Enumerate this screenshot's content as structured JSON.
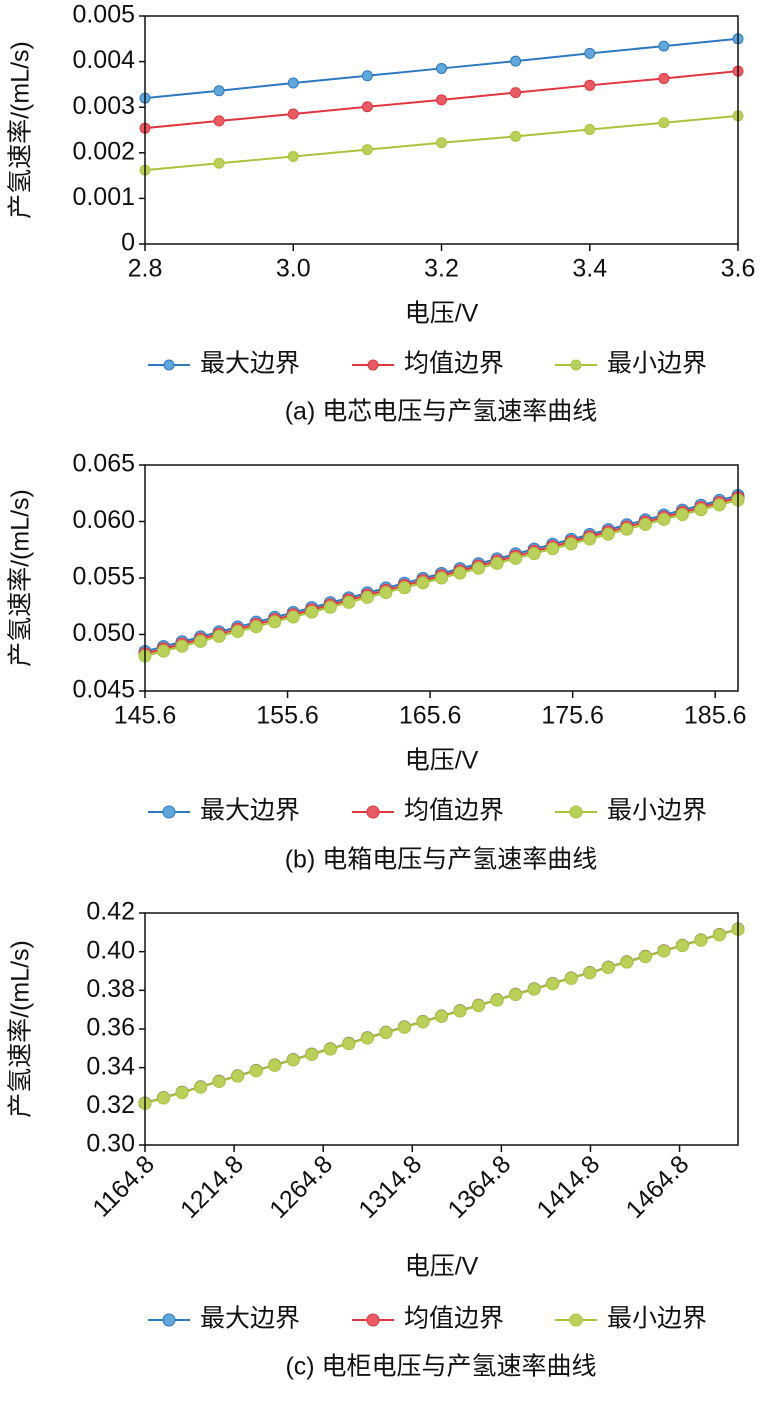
{
  "chart_data": [
    {
      "type": "line",
      "caption": "(a) 电芯电压与产氢速率曲线",
      "xlabel": "电压/V",
      "ylabel": "产氢速率/(mL/s)",
      "x": [
        2.8,
        2.9,
        3.0,
        3.1,
        3.2,
        3.3,
        3.4,
        3.5,
        3.6
      ],
      "series": [
        {
          "name": "最大边界",
          "color": "#2e78c0",
          "marker_color": "#5fa7dc",
          "values": [
            0.0032,
            0.00336,
            0.00353,
            0.00369,
            0.00385,
            0.00401,
            0.00418,
            0.00434,
            0.0045
          ]
        },
        {
          "name": "均值边界",
          "color": "#e0363f",
          "marker_color": "#ea5a62",
          "values": [
            0.00254,
            0.0027,
            0.00285,
            0.00301,
            0.00316,
            0.00332,
            0.00348,
            0.00363,
            0.00379
          ]
        },
        {
          "name": "最小边界",
          "color": "#a8c43c",
          "marker_color": "#b9d158",
          "values": [
            0.00162,
            0.00177,
            0.00192,
            0.00207,
            0.00222,
            0.00236,
            0.00251,
            0.00266,
            0.00281
          ]
        }
      ],
      "xlim": [
        2.8,
        3.6
      ],
      "xticks": [
        2.8,
        {
          "value": 3,
          "label": "3.0"
        },
        3.2,
        3.4,
        3.6
      ],
      "ylim": [
        0,
        0.005
      ],
      "yticks": [
        0,
        0.001,
        0.002,
        0.003,
        0.004,
        0.005
      ]
    },
    {
      "type": "line",
      "caption": "(b) 电箱电压与产氢速率曲线",
      "xlabel": "电压/V",
      "ylabel": "产氢速率/(mL/s)",
      "x": [
        145.6,
        146.9,
        148.2,
        149.5,
        150.8,
        152.1,
        153.4,
        154.7,
        156.0,
        157.3,
        158.6,
        159.9,
        161.2,
        162.5,
        163.8,
        165.1,
        166.4,
        167.7,
        169.0,
        170.3,
        171.6,
        172.9,
        174.2,
        175.5,
        176.8,
        178.1,
        179.4,
        180.7,
        182.0,
        183.3,
        184.6,
        185.9,
        187.2
      ],
      "series": [
        {
          "name": "最大边界",
          "color": "#2e78c0",
          "marker_color": "#5fa7dc",
          "values": [
            0.0485,
            0.04893,
            0.04936,
            0.04979,
            0.05023,
            0.05066,
            0.05109,
            0.05152,
            0.05195,
            0.05238,
            0.05281,
            0.05324,
            0.05368,
            0.05411,
            0.05454,
            0.05497,
            0.0554,
            0.05583,
            0.05626,
            0.05669,
            0.05713,
            0.05756,
            0.05799,
            0.05842,
            0.05885,
            0.05928,
            0.05971,
            0.06014,
            0.06058,
            0.06101,
            0.06144,
            0.06187,
            0.0623
          ]
        },
        {
          "name": "均值边界",
          "color": "#e0363f",
          "marker_color": "#ea5a62",
          "values": [
            0.0483,
            0.04873,
            0.04916,
            0.04959,
            0.05003,
            0.05046,
            0.05089,
            0.05132,
            0.05175,
            0.05218,
            0.05261,
            0.05304,
            0.05348,
            0.05391,
            0.05434,
            0.05477,
            0.0552,
            0.05563,
            0.05606,
            0.05649,
            0.05693,
            0.05736,
            0.05779,
            0.05822,
            0.05865,
            0.05908,
            0.05951,
            0.05994,
            0.06038,
            0.06081,
            0.06124,
            0.06167,
            0.0621
          ]
        },
        {
          "name": "最小边界",
          "color": "#a8c43c",
          "marker_color": "#b9d158",
          "values": [
            0.0481,
            0.04853,
            0.04896,
            0.04939,
            0.04983,
            0.05026,
            0.05069,
            0.05112,
            0.05155,
            0.05198,
            0.05241,
            0.05284,
            0.05328,
            0.05371,
            0.05414,
            0.05457,
            0.055,
            0.05543,
            0.05586,
            0.05629,
            0.05673,
            0.05716,
            0.05759,
            0.05802,
            0.05845,
            0.05888,
            0.05931,
            0.05974,
            0.06018,
            0.06061,
            0.06104,
            0.06147,
            0.0619
          ]
        }
      ],
      "xlim": [
        145.6,
        187.2
      ],
      "xticks": [
        145.6,
        155.6,
        165.6,
        175.6,
        185.6
      ],
      "ylim": [
        0.045,
        0.065
      ],
      "yticks": [
        0.045,
        {
          "value": 0.05,
          "label": "0.050"
        },
        0.055,
        {
          "value": 0.06,
          "label": "0.060"
        },
        0.065
      ]
    },
    {
      "type": "line",
      "caption": "(c) 电柜电压与产氢速率曲线",
      "xlabel": "电压/V",
      "ylabel": "产氢速率/(mL/s)",
      "x": [
        1164.8,
        1175.2,
        1185.6,
        1196.0,
        1206.4,
        1216.8,
        1227.2,
        1237.6,
        1248.0,
        1258.4,
        1268.8,
        1279.2,
        1289.6,
        1300.0,
        1310.4,
        1320.8,
        1331.2,
        1341.6,
        1352.0,
        1362.4,
        1372.8,
        1383.2,
        1393.6,
        1404.0,
        1414.4,
        1424.8,
        1435.2,
        1445.6,
        1456.0,
        1466.4,
        1476.8,
        1487.2,
        1497.6
      ],
      "series": [
        {
          "name": "最大边界",
          "color": "#2e78c0",
          "marker_color": "#5fa7dc",
          "values": [
            0.3217,
            0.3245,
            0.3273,
            0.3301,
            0.333,
            0.3358,
            0.3386,
            0.3414,
            0.3442,
            0.347,
            0.3498,
            0.3526,
            0.3555,
            0.3583,
            0.3611,
            0.3639,
            0.3667,
            0.3695,
            0.3723,
            0.3751,
            0.378,
            0.3808,
            0.3836,
            0.3864,
            0.3892,
            0.392,
            0.3948,
            0.3976,
            0.4005,
            0.4033,
            0.4061,
            0.4089,
            0.4117
          ]
        },
        {
          "name": "均值边界",
          "color": "#e0363f",
          "marker_color": "#ea5a62",
          "values": [
            0.3216,
            0.3244,
            0.3272,
            0.33,
            0.3329,
            0.3357,
            0.3385,
            0.3413,
            0.3441,
            0.3469,
            0.3497,
            0.3525,
            0.3554,
            0.3582,
            0.361,
            0.3638,
            0.3666,
            0.3694,
            0.3722,
            0.375,
            0.3779,
            0.3807,
            0.3835,
            0.3863,
            0.3891,
            0.3919,
            0.3947,
            0.3975,
            0.4004,
            0.4032,
            0.406,
            0.4088,
            0.4116
          ]
        },
        {
          "name": "最小边界",
          "color": "#a8c43c",
          "marker_color": "#b9d158",
          "values": [
            0.3215,
            0.3243,
            0.3271,
            0.3299,
            0.3328,
            0.3356,
            0.3384,
            0.3412,
            0.344,
            0.3468,
            0.3496,
            0.3524,
            0.3553,
            0.3581,
            0.3609,
            0.3637,
            0.3665,
            0.3693,
            0.3721,
            0.3749,
            0.3778,
            0.3806,
            0.3834,
            0.3862,
            0.389,
            0.3918,
            0.3946,
            0.3974,
            0.4003,
            0.4031,
            0.4059,
            0.4087,
            0.4115
          ]
        }
      ],
      "xlim": [
        1164.8,
        1497.6
      ],
      "xticks": [
        1164.8,
        1214.8,
        1264.8,
        1314.8,
        1364.8,
        1414.8,
        1464.8
      ],
      "ylim": [
        0.3,
        0.42
      ],
      "yticks": [
        {
          "value": 0.3,
          "label": "0.30"
        },
        0.32,
        0.34,
        0.36,
        0.38,
        {
          "value": 0.4,
          "label": "0.40"
        },
        0.42
      ]
    }
  ]
}
